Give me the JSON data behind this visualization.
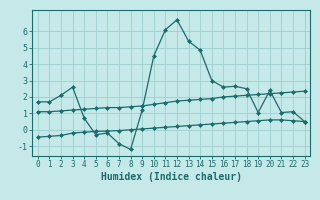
{
  "xlabel": "Humidex (Indice chaleur)",
  "bg_color": "#c5e8e8",
  "grid_color": "#9ecece",
  "line_color": "#1a6b6b",
  "line1_y": [
    1.7,
    1.7,
    2.1,
    2.6,
    0.7,
    -0.3,
    -0.2,
    -0.85,
    -1.2,
    1.2,
    4.5,
    6.1,
    6.7,
    5.4,
    4.85,
    3.0,
    2.6,
    2.65,
    2.5,
    1.05,
    2.4,
    1.05,
    1.1,
    0.5
  ],
  "line2_y": [
    1.1,
    1.1,
    1.15,
    1.2,
    1.25,
    1.3,
    1.35,
    1.35,
    1.4,
    1.45,
    1.55,
    1.65,
    1.75,
    1.8,
    1.85,
    1.9,
    2.0,
    2.05,
    2.1,
    2.15,
    2.2,
    2.25,
    2.3,
    2.35
  ],
  "line3_y": [
    -0.45,
    -0.4,
    -0.35,
    -0.2,
    -0.15,
    -0.1,
    -0.08,
    -0.05,
    0.0,
    0.05,
    0.1,
    0.15,
    0.2,
    0.25,
    0.3,
    0.35,
    0.4,
    0.45,
    0.5,
    0.55,
    0.6,
    0.6,
    0.55,
    0.5
  ],
  "xlim": [
    -0.5,
    23.5
  ],
  "ylim": [
    -1.6,
    7.3
  ],
  "yticks": [
    -1,
    0,
    1,
    2,
    3,
    4,
    5,
    6
  ],
  "xticks": [
    0,
    1,
    2,
    3,
    4,
    5,
    6,
    7,
    8,
    9,
    10,
    11,
    12,
    13,
    14,
    15,
    16,
    17,
    18,
    19,
    20,
    21,
    22,
    23
  ],
  "markersize": 2.5,
  "linewidth": 0.9,
  "tick_fontsize": 5.5,
  "xlabel_fontsize": 7.0
}
